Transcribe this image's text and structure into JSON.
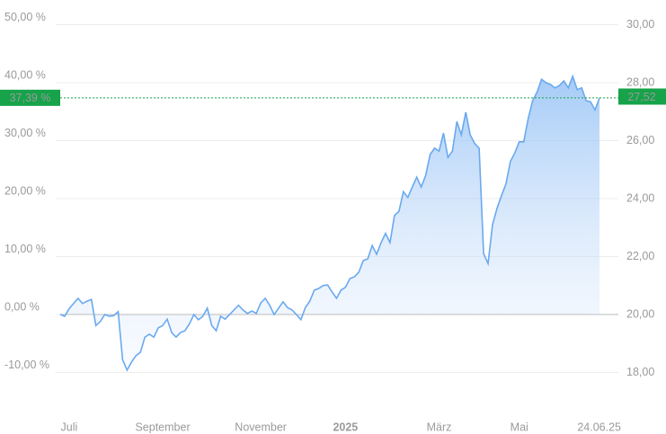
{
  "chart_data": {
    "type": "area",
    "series": [
      {
        "color": "#6aa9ef",
        "values": [
          0,
          -0.3,
          1,
          1.9,
          2.8,
          1.9,
          2.3,
          2.6,
          -1.9,
          -1.2,
          0,
          -0.3,
          -0.2,
          0.5,
          -7.8,
          -9.6,
          -8.2,
          -7.1,
          -6.5,
          -3.9,
          -3.4,
          -3.9,
          -2.3,
          -1.9,
          -0.8,
          -3.1,
          -3.9,
          -3.1,
          -2.8,
          -1.6,
          0,
          -0.9,
          -0.3,
          1.1,
          -1.9,
          -2.8,
          -0.3,
          -0.8,
          0,
          0.8,
          1.6,
          0.8,
          0.2,
          0.6,
          0.2,
          2,
          2.8,
          1.6,
          0,
          1.1,
          2.2,
          1.2,
          0.8,
          0,
          -0.9,
          1.2,
          2.3,
          4.2,
          4.5,
          5,
          5.1,
          3.9,
          2.8,
          4.2,
          4.7,
          6.2,
          6.5,
          7.3,
          9.3,
          9.6,
          11.9,
          10.4,
          12.4,
          14,
          12.4,
          17.1,
          17.8,
          21.2,
          20.2,
          22,
          23.7,
          22,
          24,
          27.6,
          28.7,
          28.2,
          31.3,
          27.1,
          28.2,
          33.3,
          31,
          34.9,
          31,
          29.5,
          28.7,
          10.5,
          8.8,
          15.5,
          18.3,
          20.5,
          22.5,
          26.4,
          27.9,
          29.8,
          29.8,
          33.8,
          36.9,
          38.4,
          40.6,
          40,
          39.7,
          39.1,
          39.5,
          40.3,
          39.1,
          41.1,
          38.8,
          39.1,
          36.9,
          36.7,
          35.3,
          37.39
        ]
      }
    ],
    "xticks": [
      {
        "value": 2,
        "label": "Juli"
      },
      {
        "value": 23,
        "label": "September"
      },
      {
        "value": 45,
        "label": "November"
      },
      {
        "value": 64,
        "label": "2025"
      },
      {
        "value": 85,
        "label": "März"
      },
      {
        "value": 103,
        "label": "Mai"
      },
      {
        "value": 121,
        "label": "24.06.25"
      }
    ],
    "ylim": [
      -15,
      52
    ],
    "yticks": [
      {
        "value": -10,
        "label": "-10,00 %"
      },
      {
        "value": 0,
        "label": "0,00 %"
      },
      {
        "value": 10,
        "label": "10,00 %"
      },
      {
        "value": 20,
        "label": "20,00 %"
      },
      {
        "value": 30,
        "label": "30,00 %"
      },
      {
        "value": 40,
        "label": "40,00 %"
      },
      {
        "value": 50,
        "label": "50,00 %"
      }
    ],
    "y2lim": [
      17,
      30.4
    ],
    "y2ticks": [
      {
        "value": 18,
        "label": "18,00"
      },
      {
        "value": 20,
        "label": "20,00"
      },
      {
        "value": 22,
        "label": "22,00"
      },
      {
        "value": 24,
        "label": "24,00"
      },
      {
        "value": 26,
        "label": "26,00"
      },
      {
        "value": 28,
        "label": "28,00"
      },
      {
        "value": 30,
        "label": "30,00"
      }
    ],
    "current": {
      "value": 37.39,
      "label": "37,39 %"
    },
    "current_price": {
      "value": 27.52,
      "label": "27,52"
    },
    "current_color": "#16a34a",
    "grid": true
  }
}
